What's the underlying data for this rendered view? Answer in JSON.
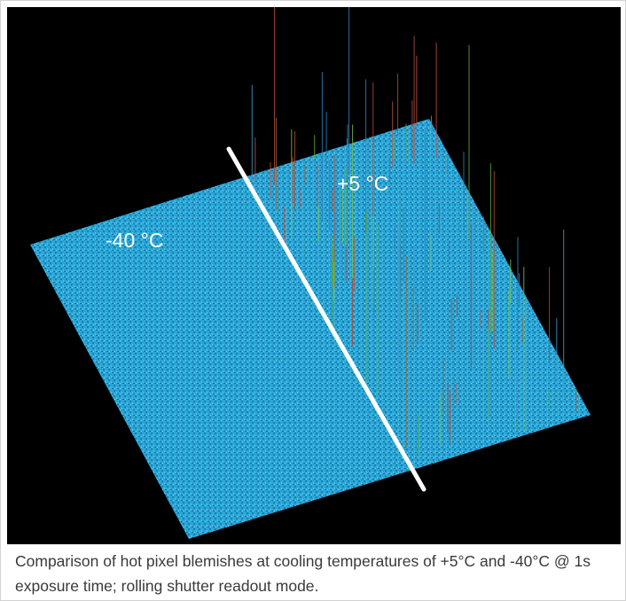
{
  "figure": {
    "label_cold": "-40 °C",
    "label_warm": "+5 °C",
    "colors": {
      "background": "#000000",
      "surface": "#2aa6d6",
      "divider": "#ffffff"
    }
  },
  "caption": "Comparison of hot pixel blemishes at cooling temperatures of +5°C and -40°C @ 1s exposure time; rolling shutter readout mode."
}
